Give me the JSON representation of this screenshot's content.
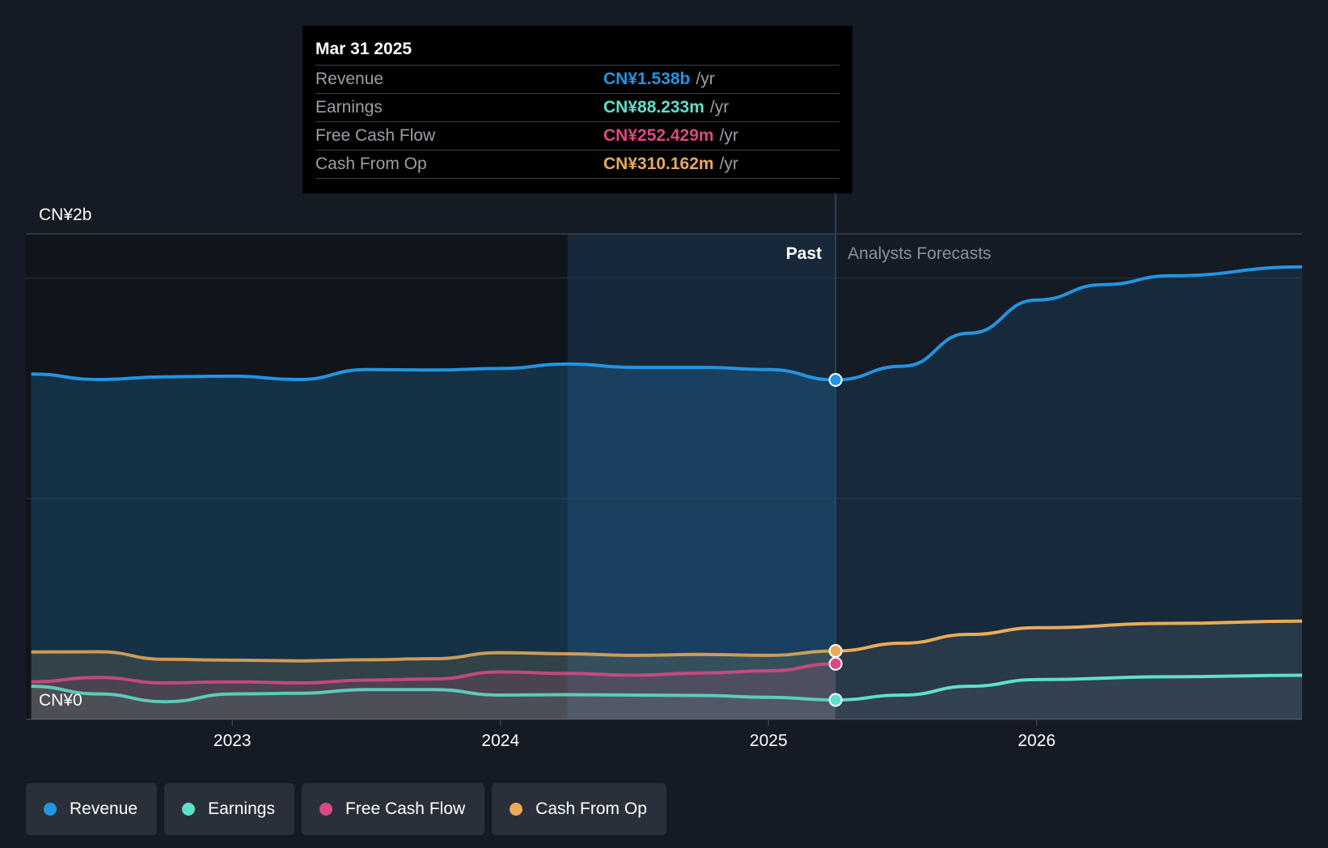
{
  "tooltip": {
    "date": "Mar 31 2025",
    "rows": [
      {
        "label": "Revenue",
        "value": "CN¥1.538b",
        "unit": "/yr",
        "color": "#2394e0"
      },
      {
        "label": "Earnings",
        "value": "CN¥88.233m",
        "unit": "/yr",
        "color": "#5fe0cb"
      },
      {
        "label": "Free Cash Flow",
        "value": "CN¥252.429m",
        "unit": "/yr",
        "color": "#d94a82"
      },
      {
        "label": "Cash From Op",
        "value": "CN¥310.162m",
        "unit": "/yr",
        "color": "#e8ab5a"
      }
    ]
  },
  "legend": [
    {
      "label": "Revenue",
      "color": "#2394e0"
    },
    {
      "label": "Earnings",
      "color": "#5fe0cb"
    },
    {
      "label": "Free Cash Flow",
      "color": "#d94a82"
    },
    {
      "label": "Cash From Op",
      "color": "#e8ab5a"
    }
  ],
  "chart_data": {
    "type": "line",
    "title": "",
    "xlabel": "",
    "ylabel": "",
    "y_tick_labels": [
      "CN¥2b",
      "CN¥0"
    ],
    "ylim": [
      0,
      2.2
    ],
    "xlim": [
      2022.23,
      2026.99
    ],
    "x_ticks": [
      2023,
      2024,
      2025,
      2026
    ],
    "x_tick_labels": [
      "2023",
      "2024",
      "2025",
      "2026"
    ],
    "past_label": "Past",
    "forecast_label": "Analysts Forecasts",
    "past_end": 2025.25,
    "highlight_start": 2024.25,
    "series": [
      {
        "name": "Revenue",
        "unit": "CN¥b",
        "color": "#2394e0",
        "points": [
          [
            2022.25,
            1.565
          ],
          [
            2022.5,
            1.54
          ],
          [
            2022.75,
            1.552
          ],
          [
            2023.0,
            1.555
          ],
          [
            2023.25,
            1.54
          ],
          [
            2023.5,
            1.585
          ],
          [
            2023.75,
            1.583
          ],
          [
            2024.0,
            1.59
          ],
          [
            2024.25,
            1.61
          ],
          [
            2024.5,
            1.595
          ],
          [
            2024.75,
            1.595
          ],
          [
            2025.0,
            1.585
          ],
          [
            2025.25,
            1.538
          ]
        ],
        "forecast": [
          [
            2025.25,
            1.538
          ],
          [
            2025.5,
            1.6
          ],
          [
            2025.75,
            1.75
          ],
          [
            2026.0,
            1.9
          ],
          [
            2026.25,
            1.97
          ],
          [
            2026.5,
            2.01
          ],
          [
            2026.99,
            2.05
          ]
        ]
      },
      {
        "name": "Earnings",
        "unit": "CN¥b",
        "color": "#5fe0cb",
        "points": [
          [
            2022.25,
            0.15
          ],
          [
            2022.5,
            0.115
          ],
          [
            2022.75,
            0.08
          ],
          [
            2023.0,
            0.115
          ],
          [
            2023.25,
            0.118
          ],
          [
            2023.5,
            0.135
          ],
          [
            2023.75,
            0.135
          ],
          [
            2024.0,
            0.11
          ],
          [
            2024.25,
            0.112
          ],
          [
            2024.5,
            0.11
          ],
          [
            2024.75,
            0.108
          ],
          [
            2025.0,
            0.1
          ],
          [
            2025.25,
            0.088
          ]
        ],
        "forecast": [
          [
            2025.25,
            0.088
          ],
          [
            2025.5,
            0.11
          ],
          [
            2025.75,
            0.15
          ],
          [
            2026.0,
            0.18
          ],
          [
            2026.5,
            0.193
          ],
          [
            2026.99,
            0.2
          ]
        ]
      },
      {
        "name": "Free Cash Flow",
        "unit": "CN¥b",
        "color": "#d94a82",
        "points": [
          [
            2022.25,
            0.17
          ],
          [
            2022.5,
            0.19
          ],
          [
            2022.75,
            0.165
          ],
          [
            2023.0,
            0.17
          ],
          [
            2023.25,
            0.165
          ],
          [
            2023.5,
            0.178
          ],
          [
            2023.75,
            0.183
          ],
          [
            2024.0,
            0.215
          ],
          [
            2024.25,
            0.208
          ],
          [
            2024.5,
            0.2
          ],
          [
            2024.75,
            0.21
          ],
          [
            2025.0,
            0.22
          ],
          [
            2025.25,
            0.252
          ]
        ]
      },
      {
        "name": "Cash From Op",
        "unit": "CN¥b",
        "color": "#e8ab5a",
        "points": [
          [
            2022.25,
            0.305
          ],
          [
            2022.5,
            0.306
          ],
          [
            2022.75,
            0.272
          ],
          [
            2023.0,
            0.268
          ],
          [
            2023.25,
            0.265
          ],
          [
            2023.5,
            0.27
          ],
          [
            2023.75,
            0.275
          ],
          [
            2024.0,
            0.302
          ],
          [
            2024.25,
            0.297
          ],
          [
            2024.5,
            0.29
          ],
          [
            2024.75,
            0.294
          ],
          [
            2025.0,
            0.29
          ],
          [
            2025.25,
            0.31
          ]
        ],
        "forecast": [
          [
            2025.25,
            0.31
          ],
          [
            2025.5,
            0.345
          ],
          [
            2025.75,
            0.385
          ],
          [
            2026.0,
            0.415
          ],
          [
            2026.5,
            0.435
          ],
          [
            2026.99,
            0.445
          ]
        ]
      }
    ]
  }
}
